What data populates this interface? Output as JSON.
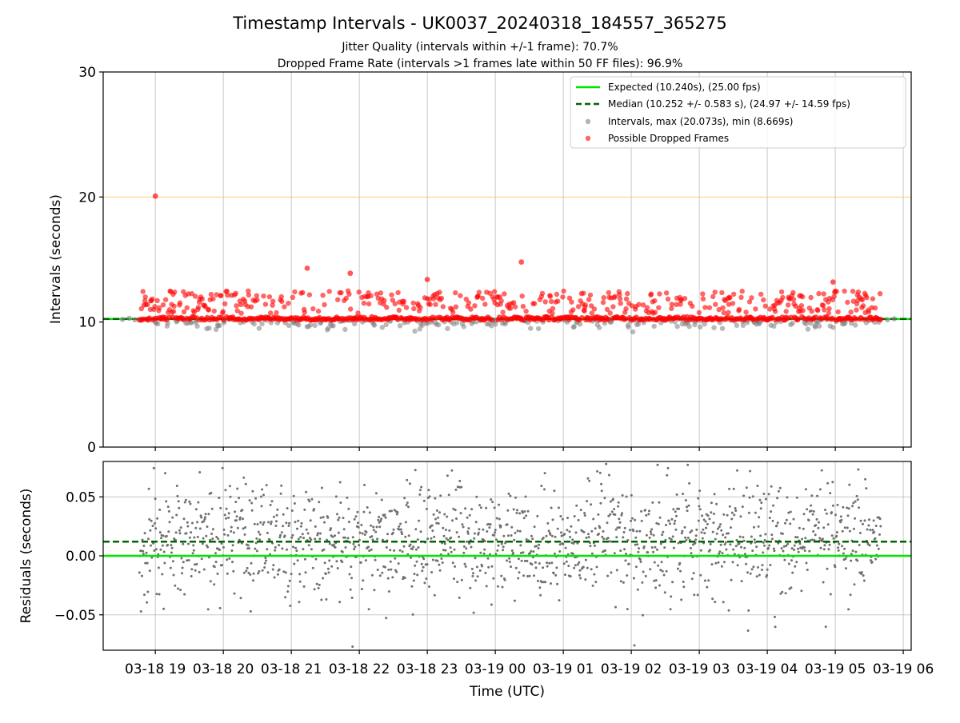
{
  "figure": {
    "title": "Timestamp Intervals - UK0037_20240318_184557_365275",
    "subtitle_1": "Jitter Quality (intervals within +/-1 frame): 70.7%",
    "subtitle_2": "Dropped Frame Rate (intervals >1 frames late within 50 FF files): 96.9%"
  },
  "chart_data": [
    {
      "type": "scatter",
      "panel": "intervals",
      "ylabel": "Intervals (seconds)",
      "ylim": [
        0,
        30
      ],
      "yticks": [
        "0",
        "10",
        "20",
        "30"
      ],
      "xlim": [
        "2024-03-18 18:14",
        "2024-03-19 06:07"
      ],
      "grid": "vertical",
      "legend_placement": "top-right",
      "reference_lines": [
        {
          "name": "Expected (10.240s), (25.00 fps)",
          "y": 10.24,
          "style": "solid",
          "color": "#00e600"
        },
        {
          "name": "Median (10.252 +/- 0.583 s), (24.97 +/- 14.59 fps)",
          "y": 10.252,
          "style": "dashed",
          "color": "#006400"
        },
        {
          "y": 20.0,
          "style": "solid",
          "color": "#ffc04d"
        }
      ],
      "series": [
        {
          "name": "Intervals, max (20.073s), min (8.669s)",
          "color": "#808080",
          "summary": {
            "max": 20.073,
            "min": 8.669
          }
        },
        {
          "name": "Possible Dropped Frames",
          "color": "#ff0000",
          "notable_points": [
            {
              "x": "2024-03-19 00:23",
              "y": 14.8
            },
            {
              "x": "2024-03-18 21:14",
              "y": 14.3
            },
            {
              "x": "2024-03-18 21:52",
              "y": 13.9
            },
            {
              "x": "2024-03-18 23:00",
              "y": 13.4
            },
            {
              "x": "2024-03-19 04:58",
              "y": 13.2
            },
            {
              "x": "2024-03-18 19:00",
              "y": 20.07
            }
          ]
        }
      ]
    },
    {
      "type": "scatter",
      "panel": "residuals",
      "xlabel": "Time (UTC)",
      "ylabel": "Residuals (seconds)",
      "ylim": [
        -0.08,
        0.08
      ],
      "yticks": [
        "−0.05",
        "0.00",
        "0.05"
      ],
      "xlim": [
        "2024-03-18 18:14",
        "2024-03-19 06:07"
      ],
      "xticks": [
        "03-18 19",
        "03-18 20",
        "03-18 21",
        "03-18 22",
        "03-18 23",
        "03-19 00",
        "03-19 01",
        "03-19 02",
        "03-19 03",
        "03-19 04",
        "03-19 05",
        "03-19 06"
      ],
      "grid": "both",
      "reference_lines": [
        {
          "y": 0.0,
          "style": "solid",
          "color": "#00e600"
        },
        {
          "y": 0.012,
          "style": "dashed",
          "color": "#006400"
        }
      ],
      "series": [
        {
          "color": "#707070",
          "summary": {
            "range": [
              -0.08,
              0.08
            ],
            "center": 0.012
          }
        }
      ]
    }
  ]
}
